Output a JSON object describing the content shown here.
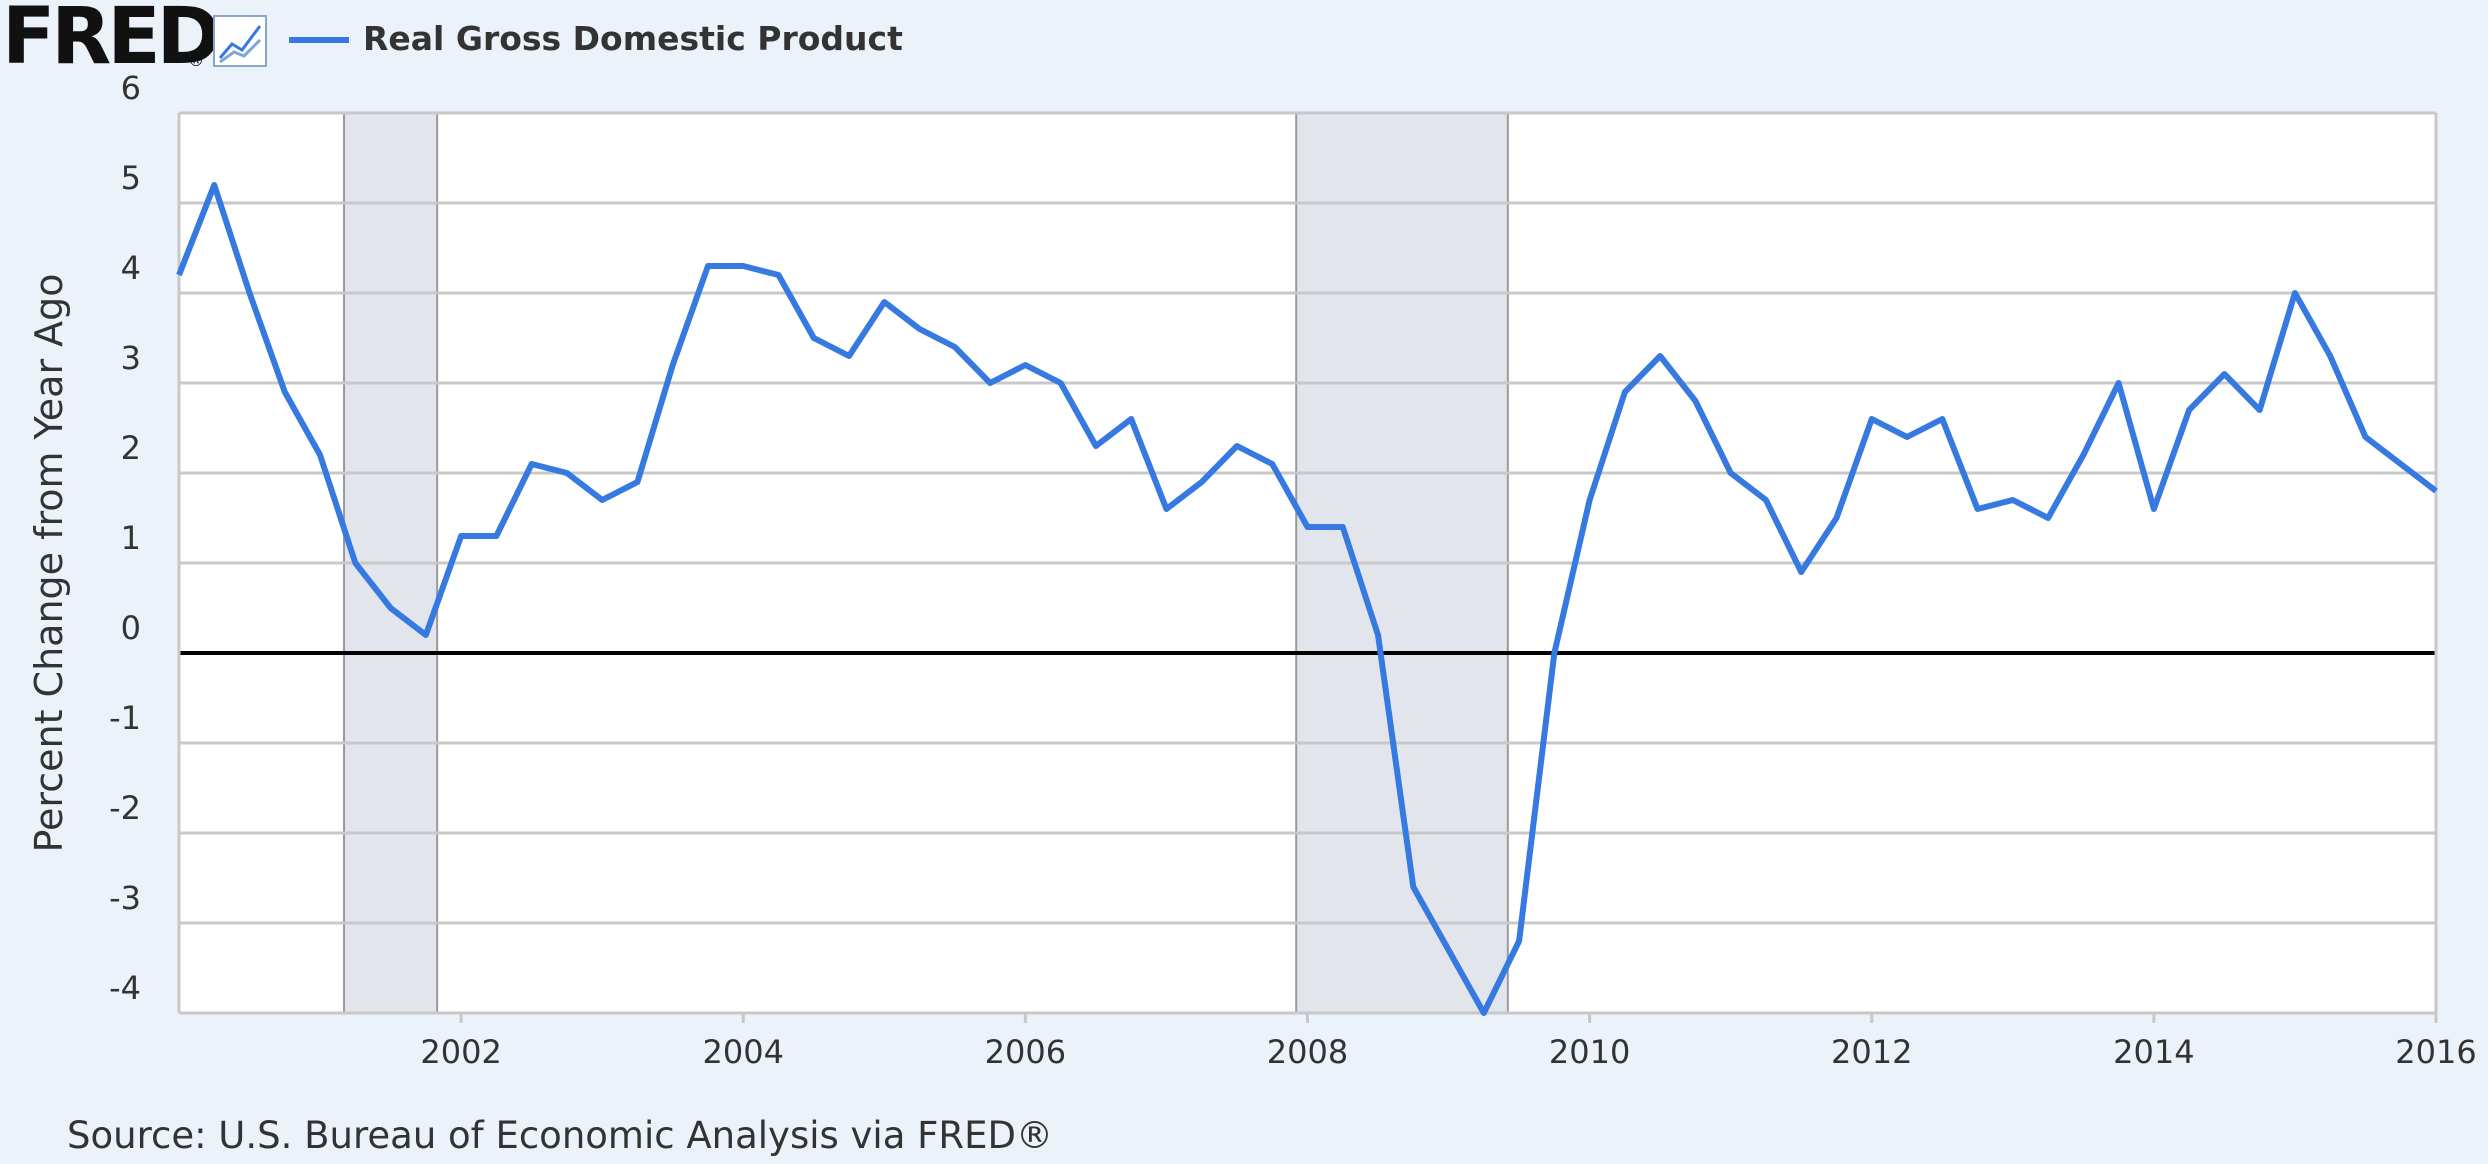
{
  "header": {
    "logo": "FRED",
    "logo_mark": "®"
  },
  "chart_data": {
    "type": "line",
    "legend_position": "top-left",
    "ylabel": "Percent Change from Year Ago",
    "source": "Source: U.S. Bureau of Economic Analysis via FRED®",
    "x": [
      2000,
      2000.25,
      2000.5,
      2000.75,
      2001,
      2001.25,
      2001.5,
      2001.75,
      2002,
      2002.25,
      2002.5,
      2002.75,
      2003,
      2003.25,
      2003.5,
      2003.75,
      2004,
      2004.25,
      2004.5,
      2004.75,
      2005,
      2005.25,
      2005.5,
      2005.75,
      2006,
      2006.25,
      2006.5,
      2006.75,
      2007,
      2007.25,
      2007.5,
      2007.75,
      2008,
      2008.25,
      2008.5,
      2008.75,
      2009,
      2009.25,
      2009.5,
      2009.75,
      2010,
      2010.25,
      2010.5,
      2010.75,
      2011,
      2011.25,
      2011.5,
      2011.75,
      2012,
      2012.25,
      2012.5,
      2012.75,
      2013,
      2013.25,
      2013.5,
      2013.75,
      2014,
      2014.25,
      2014.5,
      2014.75,
      2015,
      2015.25,
      2015.5,
      2015.75,
      2016
    ],
    "series": [
      {
        "name": "Real Gross Domestic Product",
        "color": "#3679e0",
        "values": [
          4.2,
          5.2,
          4.0,
          2.9,
          2.2,
          1.0,
          0.5,
          0.2,
          1.3,
          1.3,
          2.1,
          2.0,
          1.7,
          1.9,
          3.2,
          4.3,
          4.3,
          4.2,
          3.5,
          3.3,
          3.9,
          3.6,
          3.4,
          3.0,
          3.2,
          3.0,
          2.3,
          2.6,
          1.6,
          1.9,
          2.3,
          2.1,
          1.4,
          1.4,
          0.2,
          -2.6,
          -3.3,
          -4.0,
          -3.2,
          0.0,
          1.7,
          2.9,
          3.3,
          2.8,
          2.0,
          1.7,
          0.9,
          1.5,
          2.6,
          2.4,
          2.6,
          1.6,
          1.7,
          1.5,
          2.2,
          3.0,
          1.6,
          2.7,
          3.1,
          2.7,
          4.0,
          3.3,
          2.4,
          2.1,
          1.8
        ]
      }
    ],
    "recessions": [
      [
        2001.17,
        2001.83
      ],
      [
        2007.92,
        2009.42
      ]
    ],
    "recession_color": "#e2e6ec",
    "xlim": [
      2000,
      2016
    ],
    "xticks": [
      2002,
      2004,
      2006,
      2008,
      2010,
      2012,
      2014,
      2016
    ],
    "ylim": [
      -4,
      6
    ],
    "yticks": [
      -4,
      -3,
      -2,
      -1,
      0,
      1,
      2,
      3,
      4,
      5,
      6
    ],
    "grid": true
  }
}
